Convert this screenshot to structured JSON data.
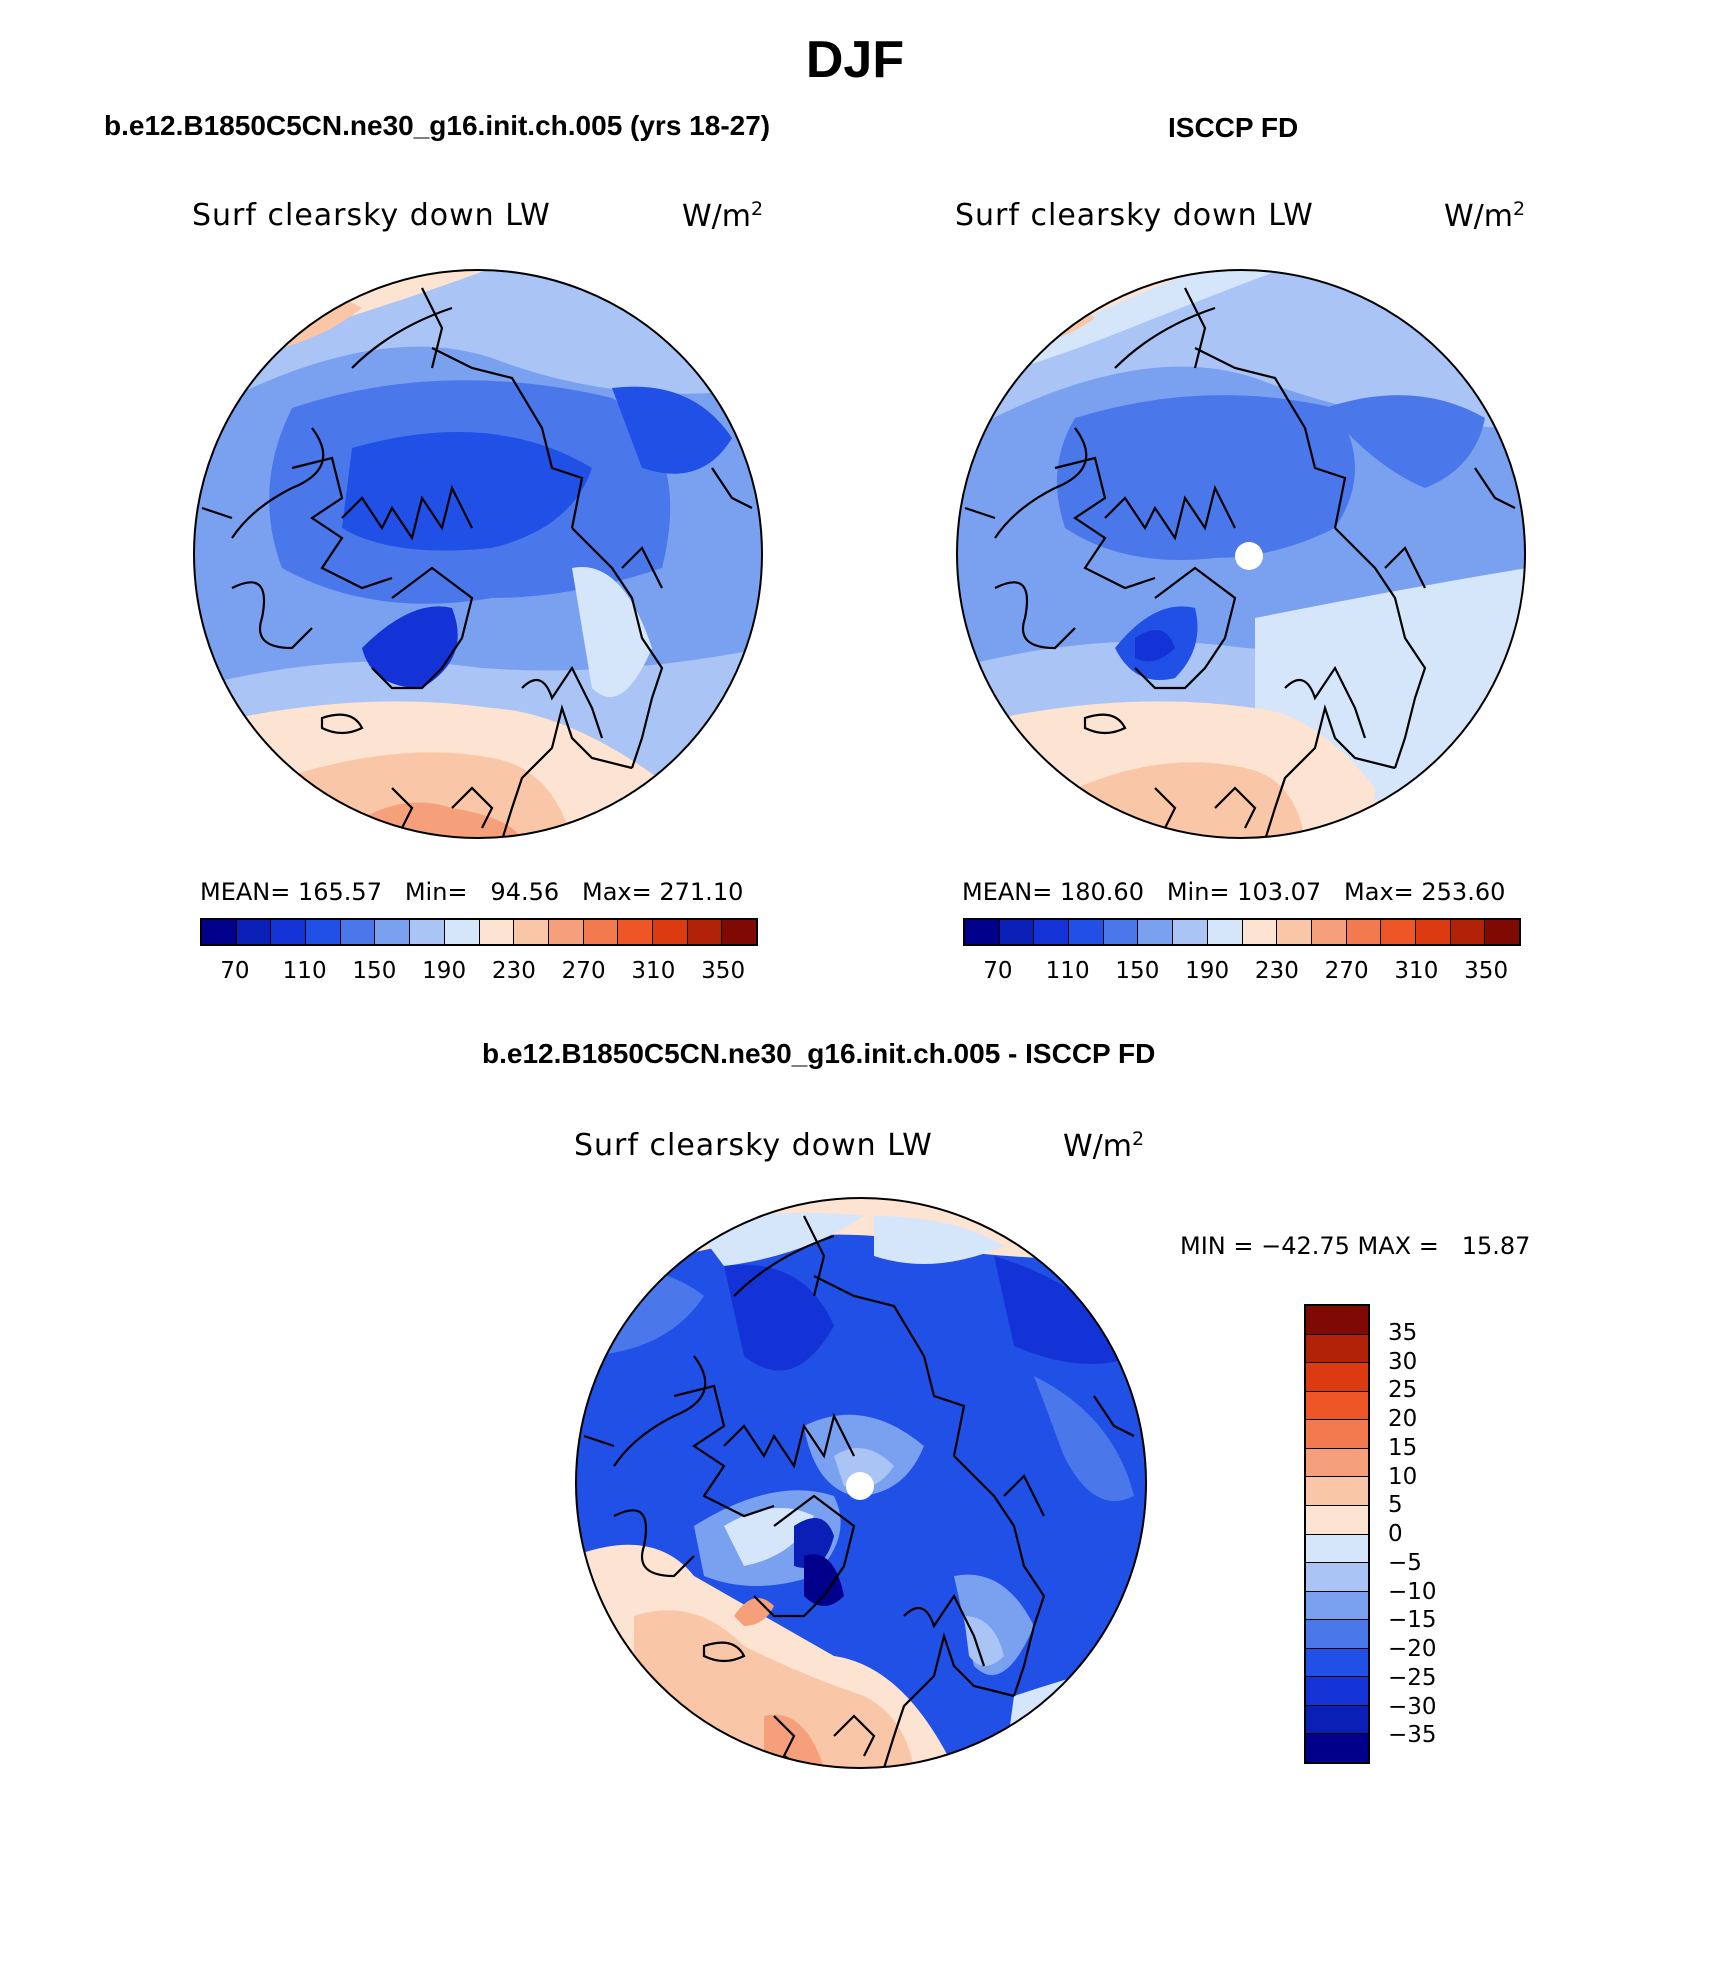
{
  "page": {
    "title": "DJF",
    "panel1_title": "b.e12.B1850C5CN.ne30_g16.init.ch.005 (yrs 18-27)",
    "panel2_title": "ISCCP FD",
    "panel3_title": "b.e12.B1850C5CN.ne30_g16.init.ch.005 - ISCCP FD"
  },
  "panels": [
    {
      "variable": "Surf clearsky down LW",
      "unit": "W/m",
      "unit_exp": "2",
      "stats": "MEAN= 165.57   Min=   94.56   Max= 271.10",
      "mean": 165.57,
      "min": 94.56,
      "max": 271.1
    },
    {
      "variable": "Surf clearsky down LW",
      "unit": "W/m",
      "unit_exp": "2",
      "stats": "MEAN= 180.60   Min= 103.07   Max= 253.60",
      "mean": 180.6,
      "min": 103.07,
      "max": 253.6
    },
    {
      "variable": "Surf clearsky down LW",
      "unit": "W/m",
      "unit_exp": "2",
      "stats": "MIN = −42.75 MAX =   15.87",
      "min": -42.75,
      "max": 15.87
    }
  ],
  "colorbar_abs": {
    "tick_labels": [
      "70",
      "110",
      "150",
      "190",
      "230",
      "270",
      "310",
      "350"
    ],
    "colors": [
      "#00008b",
      "#0a1fb5",
      "#1433d6",
      "#2050e6",
      "#4a78ea",
      "#7aa0f0",
      "#a9c4f5",
      "#d6e6fa",
      "#fce3d2",
      "#f9c6a8",
      "#f5a07a",
      "#f27a4e",
      "#ee5527",
      "#dc3a10",
      "#b22208",
      "#7e0a03"
    ]
  },
  "colorbar_diff": {
    "tick_labels": [
      "35",
      "30",
      "25",
      "20",
      "15",
      "10",
      "5",
      "0",
      "−5",
      "−10",
      "−15",
      "−20",
      "−25",
      "−30",
      "−35"
    ],
    "colors_top_to_bottom": [
      "#7e0a03",
      "#b22208",
      "#dc3a10",
      "#ee5527",
      "#f27a4e",
      "#f5a07a",
      "#f9c6a8",
      "#fce3d2",
      "#d6e6fa",
      "#a9c4f5",
      "#7aa0f0",
      "#4a78ea",
      "#2050e6",
      "#1433d6",
      "#0a1fb5",
      "#00008b"
    ]
  }
}
